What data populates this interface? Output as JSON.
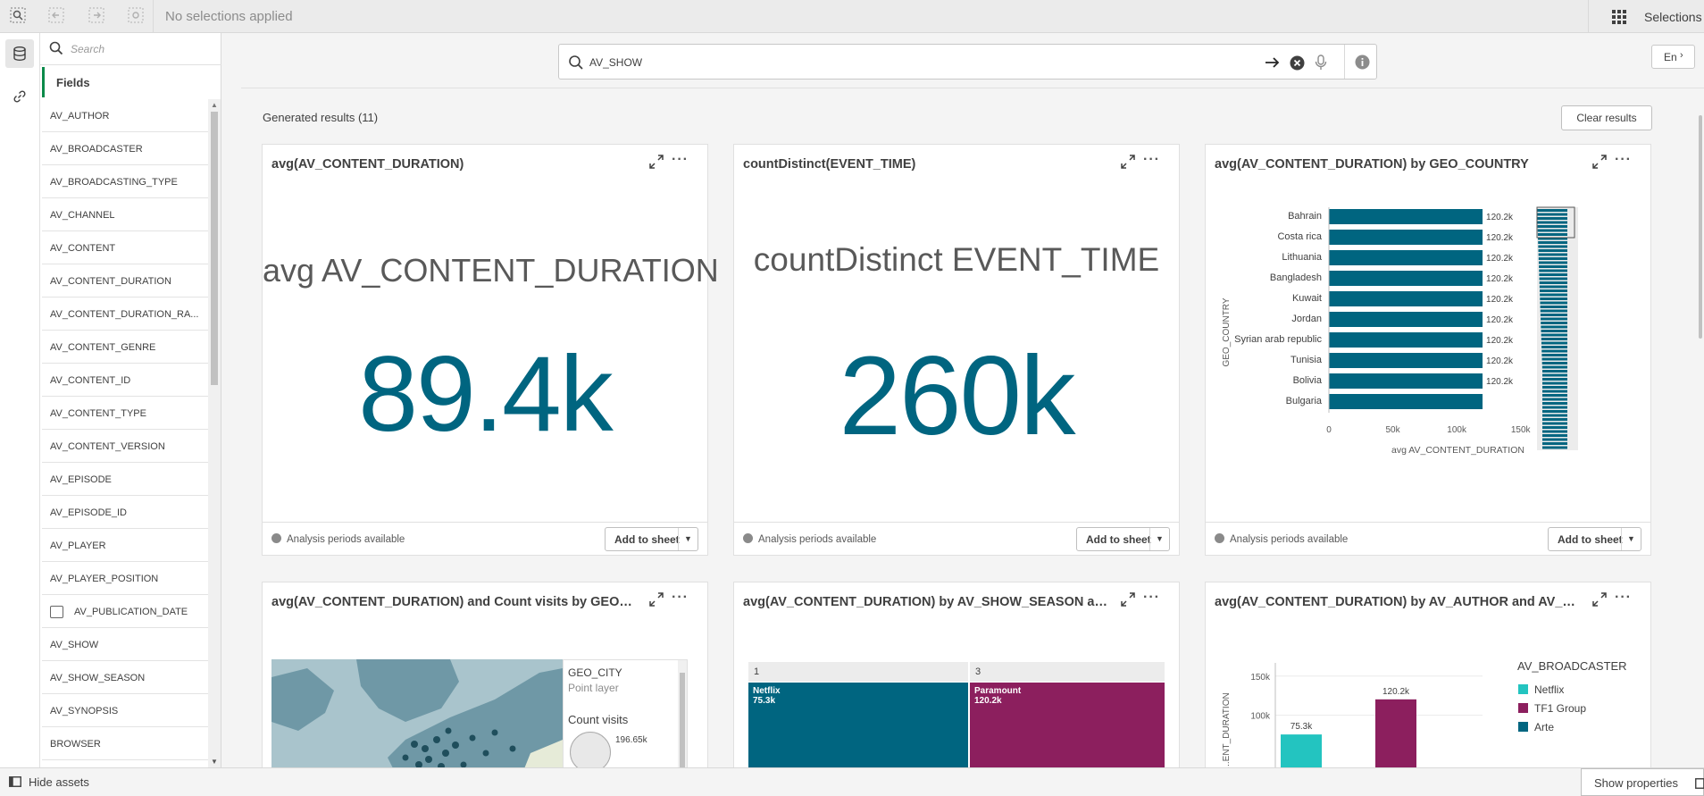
{
  "toolbar": {
    "selection_status": "No selections applied",
    "selections_label": "Selections"
  },
  "assets": {
    "search_placeholder": "Search",
    "fields_tab": "Fields",
    "fields": [
      {
        "label": "AV_AUTHOR",
        "type": "text"
      },
      {
        "label": "AV_BROADCASTER",
        "type": "text"
      },
      {
        "label": "AV_BROADCASTING_TYPE",
        "type": "text"
      },
      {
        "label": "AV_CHANNEL",
        "type": "text"
      },
      {
        "label": "AV_CONTENT",
        "type": "text"
      },
      {
        "label": "AV_CONTENT_DURATION",
        "type": "text"
      },
      {
        "label": "AV_CONTENT_DURATION_RA...",
        "type": "text"
      },
      {
        "label": "AV_CONTENT_GENRE",
        "type": "text"
      },
      {
        "label": "AV_CONTENT_ID",
        "type": "text"
      },
      {
        "label": "AV_CONTENT_TYPE",
        "type": "text"
      },
      {
        "label": "AV_CONTENT_VERSION",
        "type": "text"
      },
      {
        "label": "AV_EPISODE",
        "type": "text"
      },
      {
        "label": "AV_EPISODE_ID",
        "type": "text"
      },
      {
        "label": "AV_PLAYER",
        "type": "text"
      },
      {
        "label": "AV_PLAYER_POSITION",
        "type": "text"
      },
      {
        "label": "AV_PUBLICATION_DATE",
        "type": "date"
      },
      {
        "label": "AV_SHOW",
        "type": "text"
      },
      {
        "label": "AV_SHOW_SEASON",
        "type": "text"
      },
      {
        "label": "AV_SYNOPSIS",
        "type": "text"
      },
      {
        "label": "BROWSER",
        "type": "text"
      }
    ]
  },
  "query": {
    "value": "AV_SHOW",
    "language": "En"
  },
  "results": {
    "header": "Generated results (11)",
    "clear_label": "Clear results"
  },
  "cards": {
    "c1": {
      "title": "avg(AV_CONTENT_DURATION)",
      "kpi_label": "avg AV_CONTENT_DURATION",
      "kpi_value": "89.4k"
    },
    "c2": {
      "title": "countDistinct(EVENT_TIME)",
      "kpi_label": "countDistinct EVENT_TIME",
      "kpi_value": "260k"
    },
    "c3": {
      "title": "avg(AV_CONTENT_DURATION) by GEO_COUNTRY"
    },
    "c4": {
      "title": "avg(AV_CONTENT_DURATION) and Count visits by GEO_CITY",
      "legend_field": "GEO_CITY",
      "legend_layer": "Point layer",
      "legend_measure": "Count visits",
      "legend_bubble_value": "196.65k"
    },
    "c5": {
      "title": "avg(AV_CONTENT_DURATION) by AV_SHOW_SEASON and AV_BROADCASTER"
    },
    "c6": {
      "title": "avg(AV_CONTENT_DURATION) by AV_AUTHOR and AV_BROADCASTER"
    }
  },
  "card_footer": {
    "analysis_periods": "Analysis periods available",
    "add_to_sheet": "Add to sheet"
  },
  "bottom": {
    "hide_assets": "Hide assets",
    "show_properties": "Show properties"
  },
  "chart_data": [
    {
      "type": "bar",
      "orientation": "horizontal",
      "categories": [
        "Bahrain",
        "Costa rica",
        "Lithuania",
        "Bangladesh",
        "Kuwait",
        "Jordan",
        "Syrian arab republic",
        "Tunisia",
        "Bolivia",
        "Bulgaria"
      ],
      "values": [
        120200,
        120200,
        120200,
        120200,
        120200,
        120200,
        120200,
        120200,
        120200,
        120200
      ],
      "data_labels": [
        "120.2k",
        "120.2k",
        "120.2k",
        "120.2k",
        "120.2k",
        "120.2k",
        "120.2k",
        "120.2k",
        "120.2k",
        ""
      ],
      "xlabel": "avg AV_CONTENT_DURATION",
      "ylabel": "GEO_COUNTRY",
      "x_ticks": [
        "0",
        "50k",
        "100k",
        "150k"
      ],
      "xlim": [
        0,
        160000
      ],
      "color": "#006580"
    },
    {
      "type": "table",
      "columns": [
        "1",
        "3"
      ],
      "cells": [
        {
          "label": "Netflix",
          "value": "75.3k",
          "color": "#006580"
        },
        {
          "label": "Paramount",
          "value": "120.2k",
          "color": "#8c1f5e"
        }
      ]
    },
    {
      "type": "bar",
      "legend_title": "AV_BROADCASTER",
      "series": [
        {
          "name": "Netflix",
          "color": "#23c4c0",
          "value": 75300,
          "label": "75.3k"
        },
        {
          "name": "TF1 Group",
          "color": "#8c1f5e",
          "value": 120200,
          "label": "120.2k"
        },
        {
          "name": "Arte",
          "color": "#006580"
        }
      ],
      "y_ticks": [
        "150k",
        "100k"
      ],
      "ylabel": "...ENT_DURATION"
    }
  ]
}
